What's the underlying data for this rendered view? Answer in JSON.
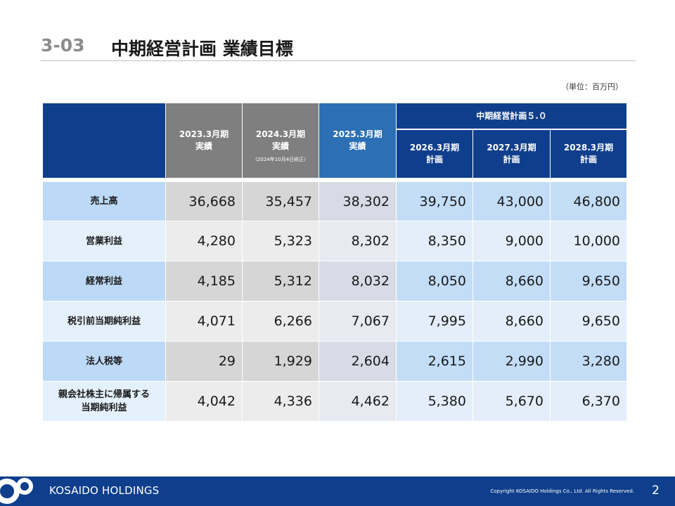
{
  "header": {
    "section_number": "3-03",
    "title": "中期経営計画 業績目標"
  },
  "unit_note": "（単位：百万円）",
  "table": {
    "group_header": "中期経営計画５.０",
    "columns": [
      {
        "year": "2023.3月期",
        "type": "実績",
        "note": ""
      },
      {
        "year": "2024.3月期",
        "type": "実績",
        "note": "（2024年10月4日修正）"
      },
      {
        "year": "2025.3月期",
        "type": "実績",
        "note": ""
      },
      {
        "year": "2026.3月期",
        "type": "計画",
        "note": ""
      },
      {
        "year": "2027.3月期",
        "type": "計画",
        "note": ""
      },
      {
        "year": "2028.3月期",
        "type": "計画",
        "note": ""
      }
    ],
    "rows": [
      {
        "label_line1": "売上高",
        "label_line2": "",
        "values": [
          "36,668",
          "35,457",
          "38,302",
          "39,750",
          "43,000",
          "46,800"
        ]
      },
      {
        "label_line1": "営業利益",
        "label_line2": "",
        "values": [
          "4,280",
          "5,323",
          "8,302",
          "8,350",
          "9,000",
          "10,000"
        ]
      },
      {
        "label_line1": "経常利益",
        "label_line2": "",
        "values": [
          "4,185",
          "5,312",
          "8,032",
          "8,050",
          "8,660",
          "9,650"
        ]
      },
      {
        "label_line1": "税引前当期純利益",
        "label_line2": "",
        "values": [
          "4,071",
          "6,266",
          "7,067",
          "7,995",
          "8,660",
          "9,650"
        ]
      },
      {
        "label_line1": "法人税等",
        "label_line2": "",
        "values": [
          "29",
          "1,929",
          "2,604",
          "2,615",
          "2,990",
          "3,280"
        ]
      },
      {
        "label_line1": "親会社株主に帰属する",
        "label_line2": "当期純利益",
        "values": [
          "4,042",
          "4,336",
          "4,462",
          "5,380",
          "5,670",
          "6,370"
        ]
      }
    ]
  },
  "footer": {
    "logo_icon": "kosaido-logo-icon",
    "brand": "KOSAIDO HOLDINGS",
    "copyright": "Copyright  KOSAIDO Holdings Co., Ltd. All Rights Reserved.",
    "page_number": "2"
  },
  "colors": {
    "navy": "#0f3f8c",
    "blue": "#2c6fb5",
    "gray": "#7f7f7f"
  }
}
